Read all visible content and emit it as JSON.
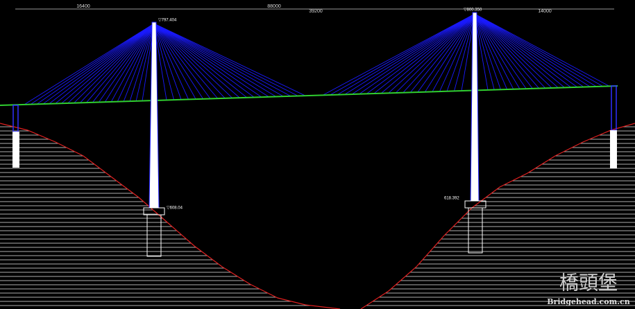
{
  "dimensions": [
    "16400",
    "88000",
    "39200",
    "14000"
  ],
  "elevations": {
    "left_tower_top": "▽797.404",
    "right_tower_top": "▽800.350",
    "left_foundation": "▽608.04",
    "right_foundation": "618.392"
  },
  "watermark": {
    "logo": "橋頭堡",
    "site": "Bridgehead.com.cn"
  }
}
